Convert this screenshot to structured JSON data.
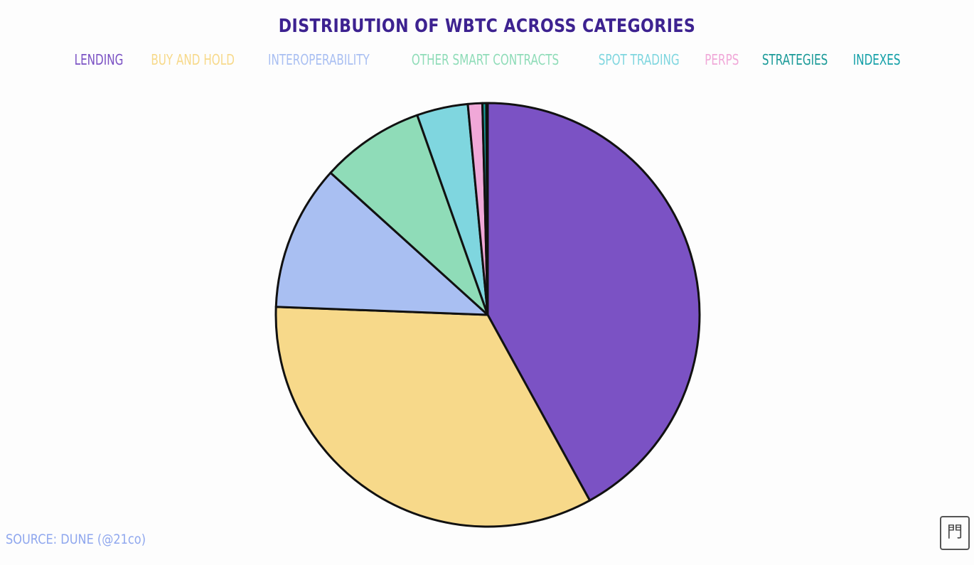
{
  "chart_data": {
    "type": "pie",
    "title": "DISTRIBUTION OF WBTC ACROSS CATEGORIES",
    "legend_placement": "top",
    "start_angle": "12 o'clock, clockwise",
    "categories": [
      "LENDING",
      "BUY AND HOLD",
      "INTEROPERABILITY",
      "OTHER SMART CONTRACTS",
      "SPOT TRADING",
      "PERPS",
      "STRATEGIES",
      "INDEXES"
    ],
    "values": [
      42.0,
      33.6,
      11.1,
      7.9,
      3.9,
      1.1,
      0.3,
      0.1
    ],
    "unit": "%",
    "colors": [
      "#7b52c4",
      "#f7d98a",
      "#a9bff2",
      "#8fdcb8",
      "#7fd6df",
      "#f0a8d8",
      "#1a9a98",
      "#14a0a8"
    ]
  },
  "source": "SOURCE: DUNE (@21co)",
  "title_color": "#3d2290"
}
